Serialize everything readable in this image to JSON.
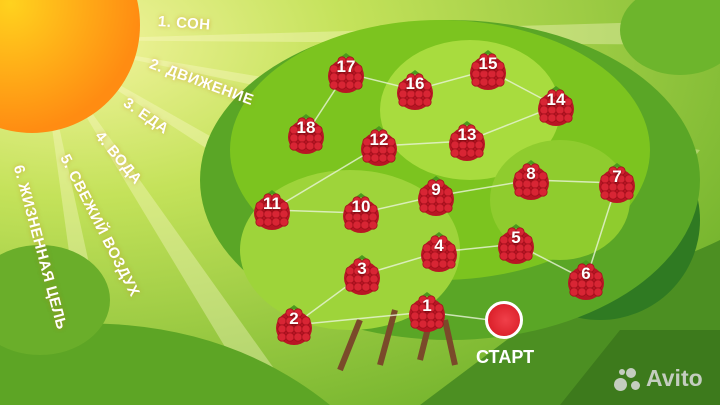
{
  "rays": [
    {
      "label": "1. СОН"
    },
    {
      "label": "2. ДВИЖЕНИЕ"
    },
    {
      "label": "3. ЕДА"
    },
    {
      "label": "4. ВОДА"
    },
    {
      "label": "5. СВЕЖИЙ ВОЗДУХ"
    },
    {
      "label": "6. ЖИЗНЕННАЯ ЦЕЛЬ"
    }
  ],
  "berries": [
    "1",
    "2",
    "3",
    "4",
    "5",
    "6",
    "7",
    "8",
    "9",
    "10",
    "11",
    "12",
    "13",
    "14",
    "15",
    "16",
    "17",
    "18"
  ],
  "start": {
    "label": "СТАРТ"
  },
  "watermark": {
    "text": "Avito"
  },
  "colors": {
    "sun": "#ff9a10",
    "berry": "#d21f2e",
    "start": "#e02630",
    "leaf": "#7cc41f"
  }
}
